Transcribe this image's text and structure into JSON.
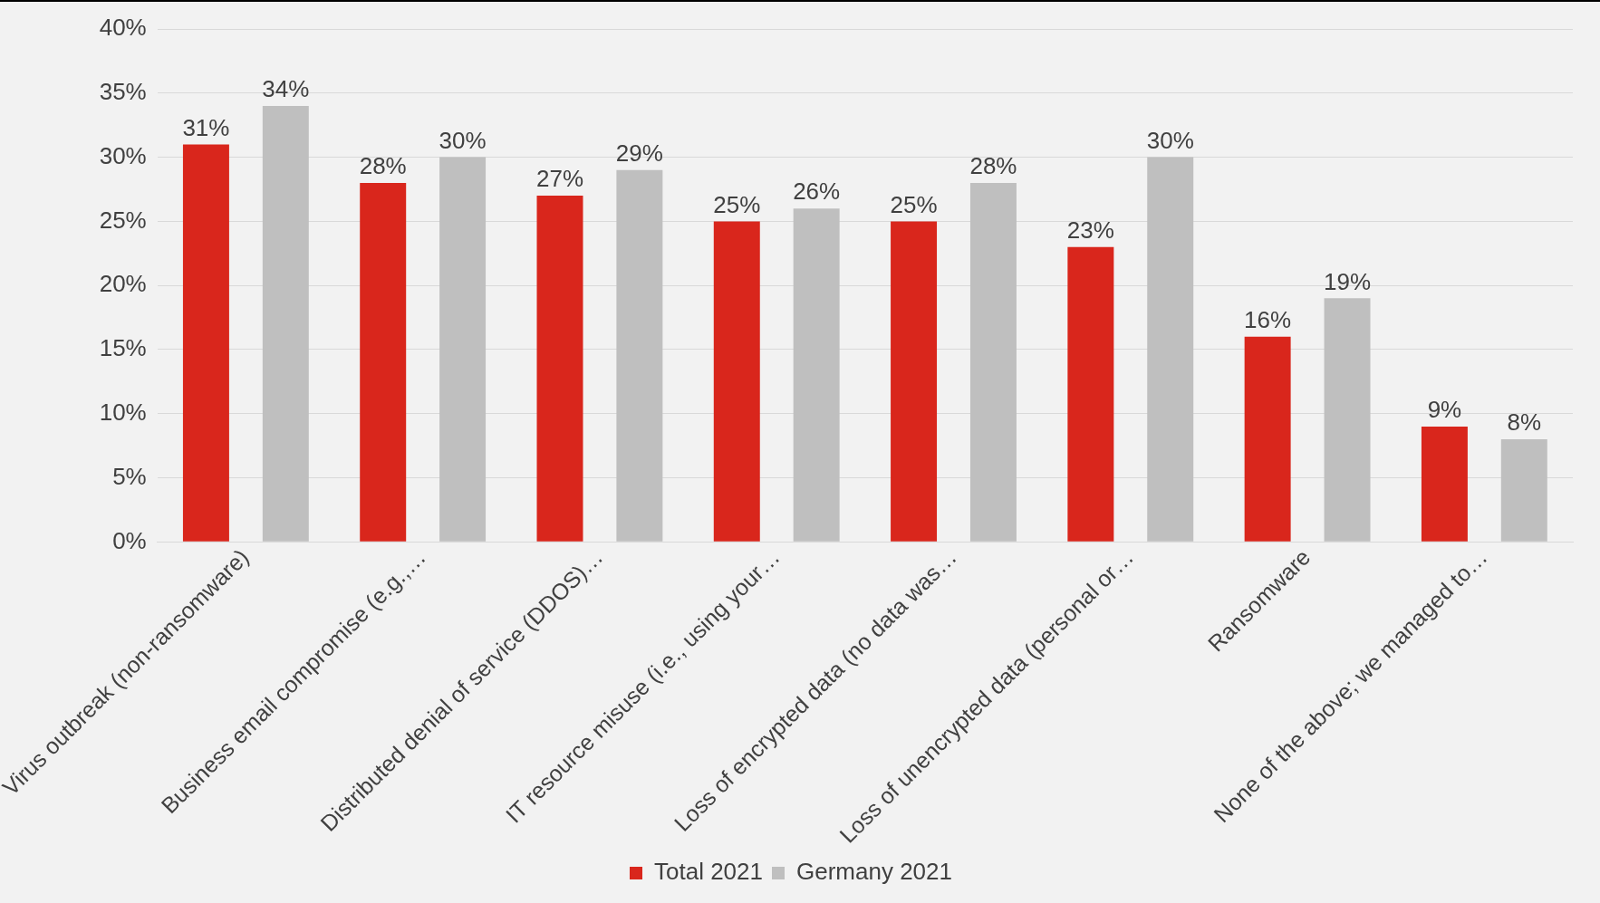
{
  "chart_data": {
    "type": "bar",
    "categories": [
      "Virus outbreak (non-ransomware)",
      "Business email compromise (e.g.,…",
      "Distributed denial of service (DDOS)…",
      "IT resource misuse (i.e., using your…",
      "Loss of encrypted data (no data was…",
      "Loss of unencrypted data (personal or…",
      "Ransomware",
      "None of the above; we managed to…"
    ],
    "series": [
      {
        "name": "Total 2021",
        "color": "#d9261c",
        "values": [
          31,
          28,
          27,
          25,
          25,
          23,
          16,
          9
        ],
        "value_labels": [
          "31%",
          "28%",
          "27%",
          "25%",
          "25%",
          "23%",
          "16%",
          "9%"
        ]
      },
      {
        "name": "Germany 2021",
        "color": "#bfbfbf",
        "values": [
          34,
          30,
          29,
          26,
          28,
          30,
          19,
          8
        ],
        "value_labels": [
          "34%",
          "30%",
          "29%",
          "26%",
          "28%",
          "30%",
          "19%",
          "8%"
        ]
      }
    ],
    "ylim": [
      0,
      40
    ],
    "yticks": [
      {
        "value": 0,
        "label": "0%"
      },
      {
        "value": 5,
        "label": "5%"
      },
      {
        "value": 10,
        "label": "10%"
      },
      {
        "value": 15,
        "label": "15%"
      },
      {
        "value": 20,
        "label": "20%"
      },
      {
        "value": 25,
        "label": "25%"
      },
      {
        "value": 30,
        "label": "30%"
      },
      {
        "value": 35,
        "label": "35%"
      },
      {
        "value": 40,
        "label": "40%"
      }
    ],
    "grid": "y",
    "legend": "bottom"
  }
}
